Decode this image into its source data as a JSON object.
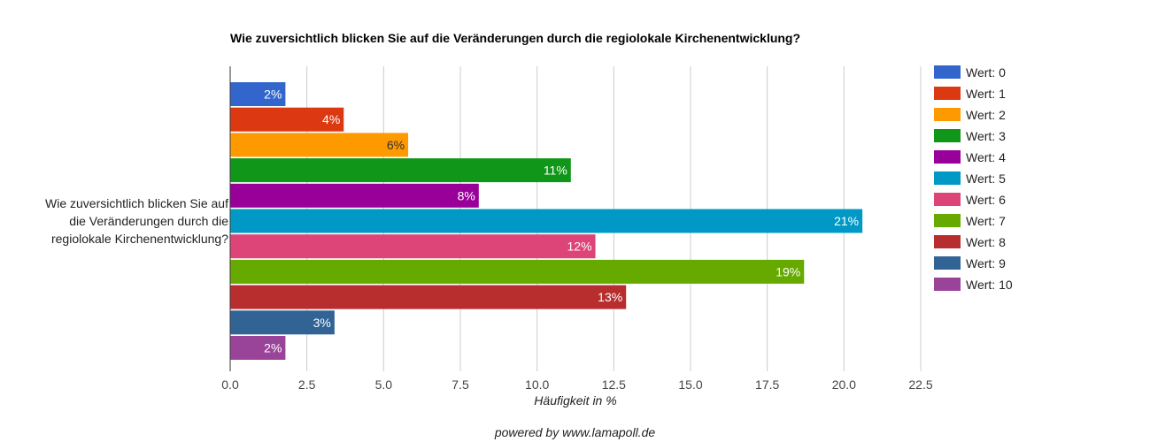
{
  "chart_data": {
    "type": "bar",
    "orientation": "horizontal",
    "title": "Wie zuversichtlich blicken Sie auf die Veränderungen durch die regiolokale Kirchenentwicklung?",
    "category_label": [
      "Wie zuversichtlich blicken Sie auf",
      "die Veränderungen durch die",
      "regiolokale Kirchenentwicklung?"
    ],
    "xlabel": "Häufigkeit in %",
    "xlim": [
      0,
      22.5
    ],
    "xticks": [
      "0.0",
      "2.5",
      "5.0",
      "7.5",
      "10.0",
      "12.5",
      "15.0",
      "17.5",
      "20.0",
      "22.5"
    ],
    "grid": true,
    "legend_position": "right",
    "series": [
      {
        "name": "Wert: 0",
        "value": 1.8,
        "label": "2%",
        "color": "#3366cc",
        "label_color": "#ffffff"
      },
      {
        "name": "Wert: 1",
        "value": 3.7,
        "label": "4%",
        "color": "#dc3912",
        "label_color": "#ffffff"
      },
      {
        "name": "Wert: 2",
        "value": 5.8,
        "label": "6%",
        "color": "#ff9900",
        "label_color": "#333333"
      },
      {
        "name": "Wert: 3",
        "value": 11.1,
        "label": "11%",
        "color": "#109618",
        "label_color": "#ffffff"
      },
      {
        "name": "Wert: 4",
        "value": 8.1,
        "label": "8%",
        "color": "#990099",
        "label_color": "#ffffff"
      },
      {
        "name": "Wert: 5",
        "value": 20.6,
        "label": "21%",
        "color": "#0099c6",
        "label_color": "#ffffff"
      },
      {
        "name": "Wert: 6",
        "value": 11.9,
        "label": "12%",
        "color": "#dd4477",
        "label_color": "#ffffff"
      },
      {
        "name": "Wert: 7",
        "value": 18.7,
        "label": "19%",
        "color": "#66aa00",
        "label_color": "#ffffff"
      },
      {
        "name": "Wert: 8",
        "value": 12.9,
        "label": "13%",
        "color": "#b82e2e",
        "label_color": "#ffffff"
      },
      {
        "name": "Wert: 9",
        "value": 3.4,
        "label": "3%",
        "color": "#316395",
        "label_color": "#ffffff"
      },
      {
        "name": "Wert: 10",
        "value": 1.8,
        "label": "2%",
        "color": "#994499",
        "label_color": "#ffffff"
      }
    ]
  },
  "footer": "powered by www.lamapoll.de"
}
